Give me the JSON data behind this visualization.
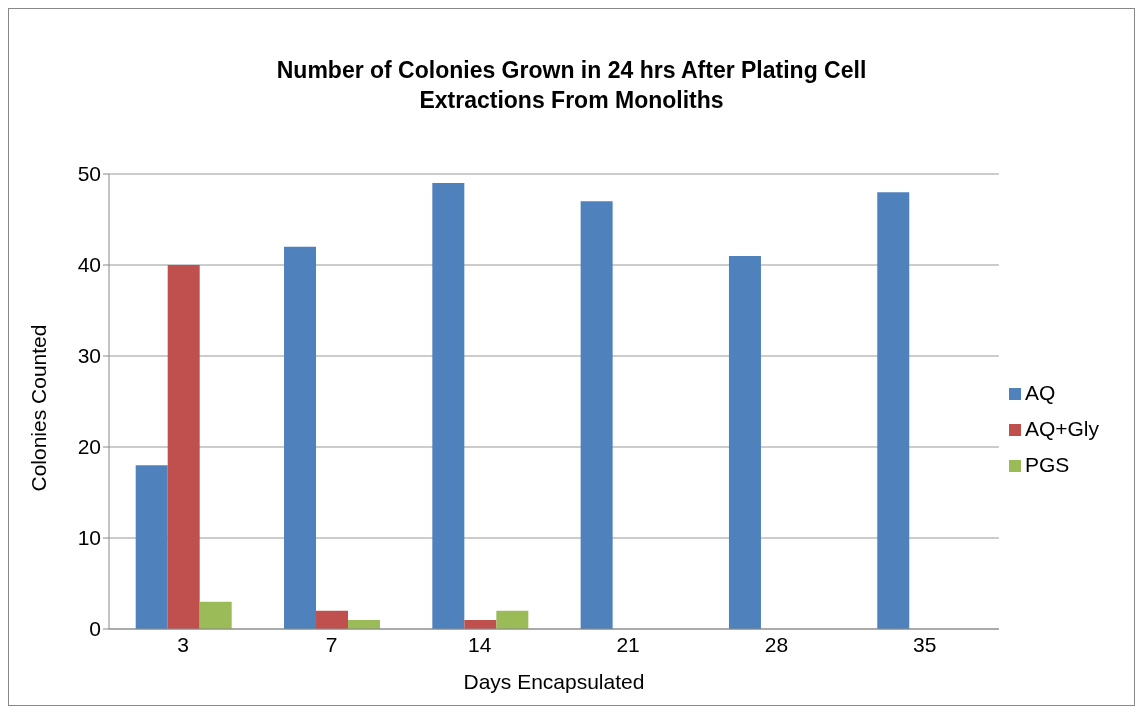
{
  "chart_data": {
    "type": "bar",
    "title": "Number of Colonies Grown in 24 hrs After Plating Cell Extractions From Monoliths",
    "xlabel": "Days Encapsulated",
    "ylabel": "Colonies Counted",
    "categories": [
      "3",
      "7",
      "14",
      "21",
      "28",
      "35"
    ],
    "series": [
      {
        "name": "AQ",
        "color": "#4f81bd",
        "values": [
          18,
          42,
          49,
          47,
          41,
          48
        ]
      },
      {
        "name": "AQ+Gly",
        "color": "#c0504d",
        "values": [
          40,
          2,
          1,
          0,
          0,
          0
        ]
      },
      {
        "name": "PGS",
        "color": "#9bbb59",
        "values": [
          3,
          1,
          2,
          0,
          0,
          0
        ]
      }
    ],
    "ylim": [
      0,
      50
    ],
    "yticks": [
      0,
      10,
      20,
      30,
      40,
      50
    ],
    "grid": "y",
    "legend": "right"
  }
}
